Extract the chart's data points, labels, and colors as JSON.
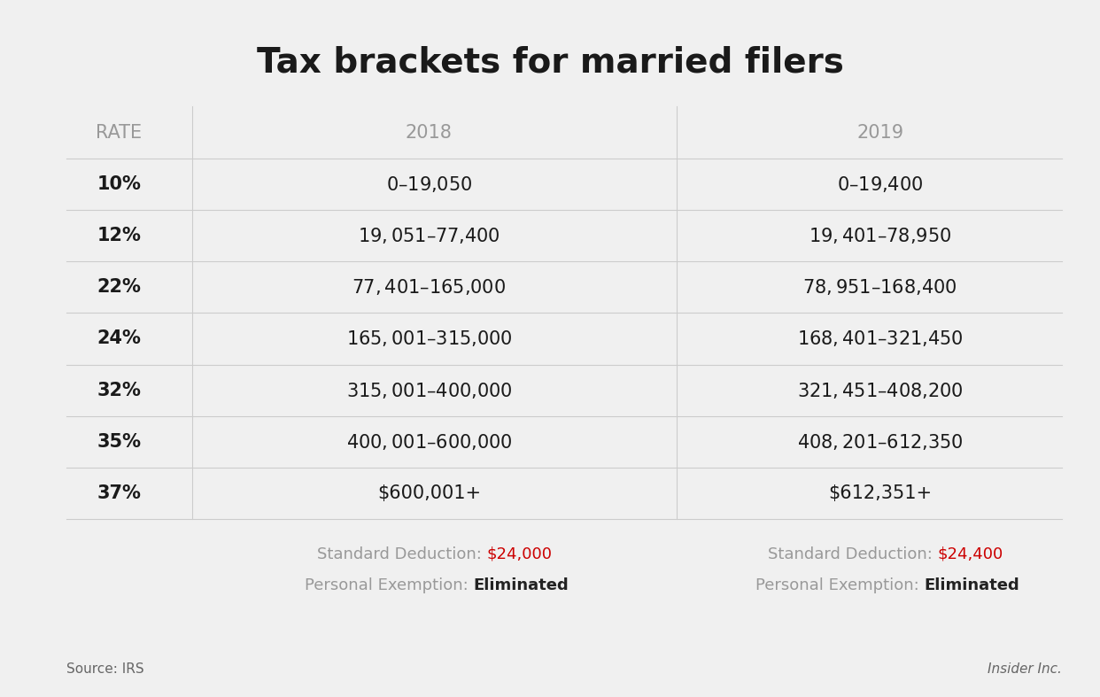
{
  "title": "Tax brackets for married filers",
  "title_fontsize": 28,
  "title_fontweight": "bold",
  "background_color": "#f0f0f0",
  "header_color": "#999999",
  "header_fontsize": 15,
  "rate_col_header": "RATE",
  "col_2018": "2018",
  "col_2019": "2019",
  "rates": [
    "10%",
    "12%",
    "22%",
    "24%",
    "32%",
    "35%",
    "37%"
  ],
  "brackets_2018": [
    "$0 – $19,050",
    "$19,051 – $77,400",
    "$77,401 – $165,000",
    "$165,001 – $315,000",
    "$315,001 – $400,000",
    "$400,001–$600,000",
    "$600,001+"
  ],
  "brackets_2019": [
    "$0 – $19,400",
    "$19,401 – $78,950",
    "$78,951 – $168,400",
    "$168,401 – $321,450",
    "$321,451 – $408,200",
    "$408,201 – $612,350",
    "$612,351+"
  ],
  "footer_2018_sd_label": "Standard Deduction: ",
  "footer_2018_sd_value": "$24,000",
  "footer_2018_pe_label": "Personal Exemption: ",
  "footer_2018_pe_value": "Eliminated",
  "footer_2019_sd_label": "Standard Deduction: ",
  "footer_2019_sd_value": "$24,400",
  "footer_2019_pe_label": "Personal Exemption: ",
  "footer_2019_pe_value": "Eliminated",
  "footer_label_color": "#999999",
  "footer_value_red_color": "#cc0000",
  "footer_value_bold_color": "#222222",
  "source_text": "Source: IRS",
  "brand_text": "Insider Inc.",
  "line_color": "#cccccc",
  "rate_fontsize": 15,
  "bracket_fontsize": 15,
  "footer_fontsize": 13,
  "source_fontsize": 11
}
